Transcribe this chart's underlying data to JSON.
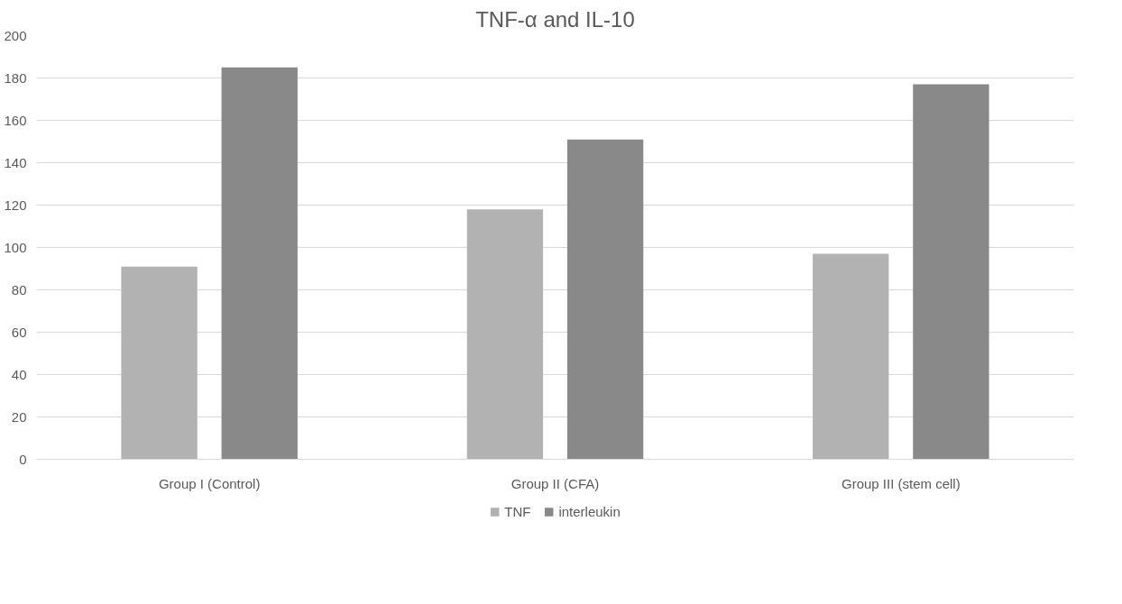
{
  "chart_data": {
    "type": "bar",
    "title": "TNF-α and IL-10",
    "categories": [
      "Group I (Control)",
      "Group II (CFA)",
      "Group III (stem cell)"
    ],
    "series": [
      {
        "name": "TNF",
        "color": "#b2b2b2",
        "values": [
          91,
          118,
          97
        ]
      },
      {
        "name": "interleukin",
        "color": "#898989",
        "values": [
          185,
          151,
          177
        ]
      }
    ],
    "ylim": [
      0,
      200
    ],
    "yticks": [
      0,
      20,
      40,
      60,
      80,
      100,
      120,
      140,
      160,
      180,
      200
    ],
    "grid": "y",
    "legend": "bottom"
  }
}
